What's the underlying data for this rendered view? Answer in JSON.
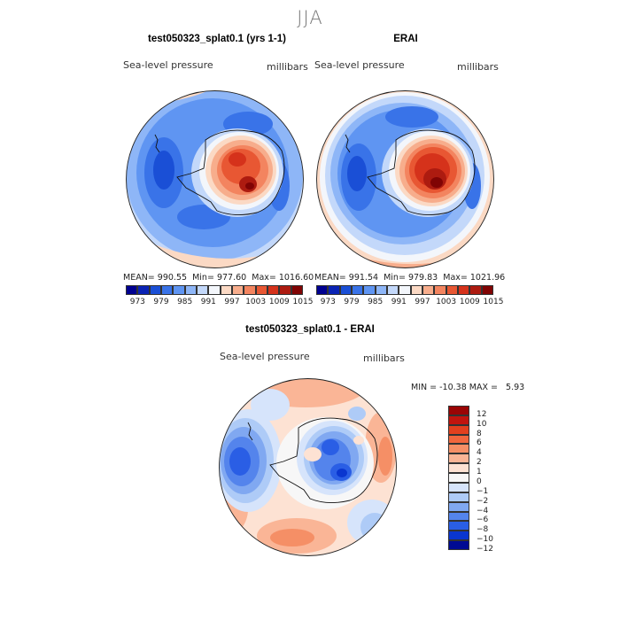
{
  "title": "JJA",
  "panels": [
    {
      "title": "test050323_splat0.1 (yrs 1-1)",
      "variable": "Sea-level pressure",
      "units": "millibars",
      "mean_label": "MEAN=",
      "mean": "990.55",
      "min_label": "Min=",
      "min": "977.60",
      "max_label": "Max=",
      "max": "1016.60"
    },
    {
      "title": "ERAI",
      "variable": "Sea-level pressure",
      "units": "millibars",
      "mean_label": "MEAN=",
      "mean": "991.54",
      "min_label": "Min=",
      "min": "979.83",
      "max_label": "Max=",
      "max": "1021.96"
    }
  ],
  "colorbar": {
    "colors": [
      "#000090",
      "#0a23b4",
      "#1a4fd6",
      "#3973e8",
      "#5f95f2",
      "#8eb6f7",
      "#c3d8fa",
      "#f3f6fb",
      "#fbd9c4",
      "#f7ad8c",
      "#f3845f",
      "#e85733",
      "#d5321b",
      "#ad1b10",
      "#800404"
    ],
    "ticks": [
      "973",
      "979",
      "985",
      "991",
      "997",
      "1003",
      "1009",
      "1015"
    ]
  },
  "diff": {
    "title": "test050323_splat0.1 - ERAI",
    "variable": "Sea-level pressure",
    "units": "millibars",
    "min_label": "MIN =",
    "min": "-10.38",
    "max_label": "MAX =",
    "max": "5.93",
    "colors": [
      "#9a0505",
      "#c0150e",
      "#e1401e",
      "#f0663d",
      "#f58f66",
      "#fab596",
      "#fde2d3",
      "#f7f7f7",
      "#d6e4fb",
      "#aecbf7",
      "#80a8f1",
      "#5484ec",
      "#2a5ee5",
      "#0a36d0",
      "#000a93"
    ],
    "ticks": [
      "12",
      "10",
      "8",
      "6",
      "4",
      "2",
      "1",
      "0",
      "−1",
      "−2",
      "−4",
      "−6",
      "−8",
      "−10",
      "−12"
    ]
  }
}
